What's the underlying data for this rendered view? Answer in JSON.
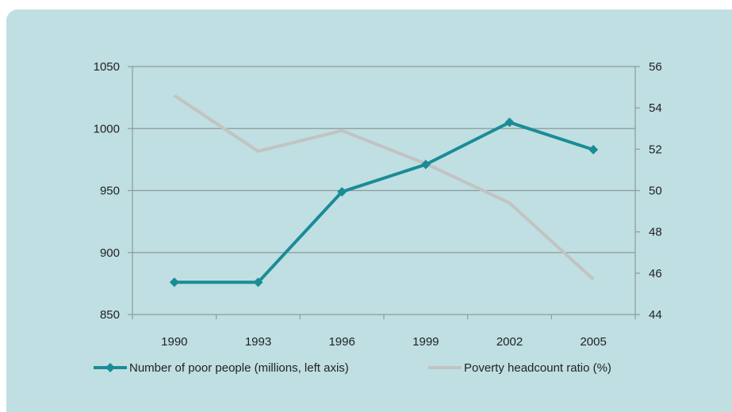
{
  "colors": {
    "background": "#bfdfe2",
    "series_poor": "#1a8c96",
    "series_ratio": "#c3c3c3",
    "grid": "#8e9a9c"
  },
  "chart_data": {
    "type": "line",
    "categories": [
      "1990",
      "1993",
      "1996",
      "1999",
      "2002",
      "2005"
    ],
    "series": [
      {
        "name": "Number of poor people (millions, left axis)",
        "axis": "left",
        "marker": "diamond",
        "values": [
          876,
          876,
          949,
          971,
          1005,
          983
        ]
      },
      {
        "name": "Poverty headcount ratio (%)",
        "axis": "right",
        "marker": "none",
        "values": [
          54.6,
          51.9,
          52.9,
          51.3,
          49.4,
          45.7
        ]
      }
    ],
    "y_left": {
      "ylim": [
        850,
        1050
      ],
      "ticks": [
        "850",
        "900",
        "950",
        "1000",
        "1050"
      ]
    },
    "y_right": {
      "ylim": [
        44,
        56
      ],
      "ticks": [
        "44",
        "46",
        "48",
        "50",
        "52",
        "54",
        "56"
      ]
    },
    "grid": true,
    "legend_position": "bottom"
  }
}
